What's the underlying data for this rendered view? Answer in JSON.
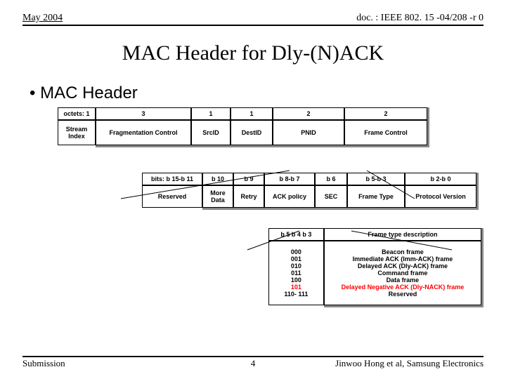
{
  "header": {
    "date": "May 2004",
    "doc": "doc. : IEEE 802. 15 -04/208 -r 0"
  },
  "title": "MAC Header for Dly-(N)ACK",
  "bullet": "• MAC Header",
  "t1": {
    "r1": [
      "octets: 1",
      "3",
      "1",
      "1",
      "2",
      "2"
    ],
    "r2": [
      "Stream Index",
      "Fragmentation Control",
      "SrcID",
      "DestID",
      "PNID",
      "Frame Control"
    ]
  },
  "t2": {
    "r1": [
      "bits: b 15-b 11",
      "b 10",
      "b 9",
      "b 8-b 7",
      "b 6",
      "b 5-b 3",
      "b 2-b 0"
    ],
    "r2": [
      "Reserved",
      "More Data",
      "Retry",
      "ACK policy",
      "SEC",
      "Frame Type",
      "Protocol Version"
    ]
  },
  "t3": {
    "h": [
      "b 5 b 4 b 3",
      "Frame type description"
    ],
    "codes": [
      "000",
      "001",
      "010",
      "011",
      "100",
      "101",
      "110- 111"
    ],
    "descs": [
      "Beacon frame",
      "Immediate ACK (Imm-ACK) frame",
      "Delayed ACK (Dly-ACK) frame",
      "Command frame",
      "Data frame",
      "Delayed Negative ACK (Dly-NACK) frame",
      "Reserved"
    ],
    "red_idx": 5
  },
  "footer": {
    "left": "Submission",
    "mid": "4",
    "right": "Jinwoo Hong et al, Samsung Electronics"
  }
}
